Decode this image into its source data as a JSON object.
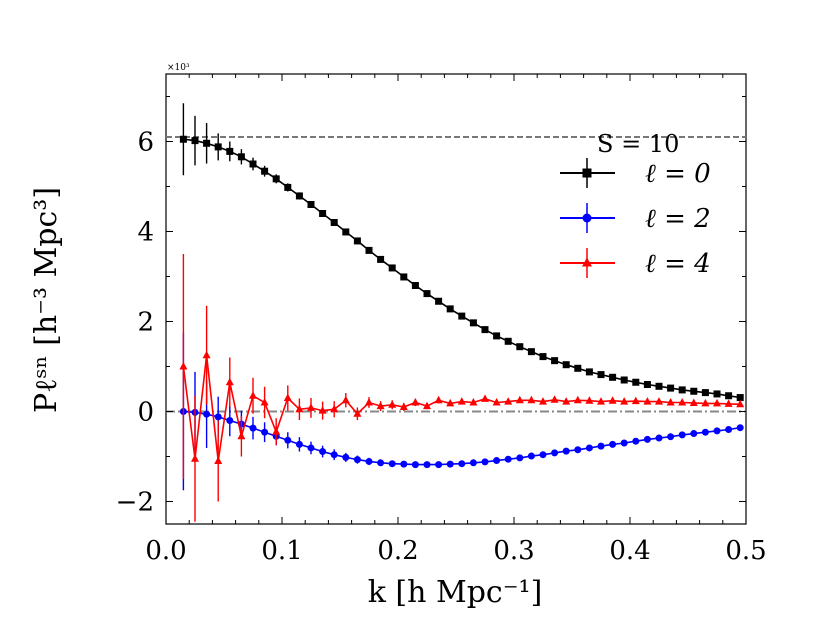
{
  "chart_data": {
    "type": "line",
    "xlabel": "k [h Mpc⁻¹]",
    "ylabel": "Pℓˢⁿ [h⁻³ Mpc³]",
    "xlim": [
      0.0,
      0.5
    ],
    "ylim": [
      -2.5,
      7.5
    ],
    "x_ticks": [
      0.0,
      0.1,
      0.2,
      0.3,
      0.4,
      0.5
    ],
    "x_tick_labels": [
      "0.0",
      "0.1",
      "0.2",
      "0.3",
      "0.4",
      "0.5"
    ],
    "y_ticks": [
      -2,
      0,
      2,
      4,
      6
    ],
    "y_tick_labels": [
      "−2",
      "0",
      "2",
      "4",
      "6"
    ],
    "multiplier_label": "×10³",
    "annotation": "S = 10",
    "legend_position": "right",
    "reference_lines": [
      {
        "name": "shot-noise-level",
        "y": 6.1,
        "style": "dashed",
        "color": "#777777"
      },
      {
        "name": "zero-line",
        "y": 0.0,
        "style": "dashdot",
        "color": "#888888"
      }
    ],
    "series": [
      {
        "name": "ℓ = 0",
        "color": "#000000",
        "marker": "square",
        "x": [
          0.015,
          0.025,
          0.035,
          0.045,
          0.055,
          0.065,
          0.075,
          0.085,
          0.095,
          0.105,
          0.115,
          0.125,
          0.135,
          0.145,
          0.155,
          0.165,
          0.175,
          0.185,
          0.195,
          0.205,
          0.215,
          0.225,
          0.235,
          0.245,
          0.255,
          0.265,
          0.275,
          0.285,
          0.295,
          0.305,
          0.315,
          0.325,
          0.335,
          0.345,
          0.355,
          0.365,
          0.375,
          0.385,
          0.395,
          0.405,
          0.415,
          0.425,
          0.435,
          0.445,
          0.455,
          0.465,
          0.475,
          0.485,
          0.495
        ],
        "values": [
          6.05,
          6.02,
          5.96,
          5.88,
          5.78,
          5.66,
          5.5,
          5.34,
          5.17,
          4.98,
          4.79,
          4.6,
          4.4,
          4.2,
          3.99,
          3.79,
          3.58,
          3.38,
          3.19,
          2.99,
          2.8,
          2.62,
          2.45,
          2.28,
          2.12,
          1.97,
          1.82,
          1.68,
          1.56,
          1.44,
          1.33,
          1.22,
          1.13,
          1.04,
          0.96,
          0.88,
          0.82,
          0.76,
          0.7,
          0.65,
          0.6,
          0.56,
          0.52,
          0.48,
          0.45,
          0.42,
          0.39,
          0.35,
          0.31
        ],
        "errors": [
          0.8,
          0.55,
          0.45,
          0.3,
          0.22,
          0.17,
          0.14,
          0.12,
          0.1,
          0.09,
          0.08,
          0.07,
          0.07,
          0.06,
          0.06,
          0.06,
          0.05,
          0.05,
          0.05,
          0.05,
          0.05,
          0.05,
          0.05,
          0.05,
          0.05,
          0.05,
          0.05,
          0.05,
          0.05,
          0.05,
          0.05,
          0.05,
          0.05,
          0.05,
          0.05,
          0.05,
          0.05,
          0.05,
          0.05,
          0.05,
          0.05,
          0.05,
          0.05,
          0.05,
          0.05,
          0.05,
          0.05,
          0.05,
          0.05
        ]
      },
      {
        "name": "ℓ = 2",
        "color": "#0000ff",
        "marker": "circle",
        "x": [
          0.015,
          0.025,
          0.035,
          0.045,
          0.055,
          0.065,
          0.075,
          0.085,
          0.095,
          0.105,
          0.115,
          0.125,
          0.135,
          0.145,
          0.155,
          0.165,
          0.175,
          0.185,
          0.195,
          0.205,
          0.215,
          0.225,
          0.235,
          0.245,
          0.255,
          0.265,
          0.275,
          0.285,
          0.295,
          0.305,
          0.315,
          0.325,
          0.335,
          0.345,
          0.355,
          0.365,
          0.375,
          0.385,
          0.395,
          0.405,
          0.415,
          0.425,
          0.435,
          0.445,
          0.455,
          0.465,
          0.475,
          0.485,
          0.495
        ],
        "values": [
          0.0,
          -0.02,
          -0.06,
          -0.12,
          -0.2,
          -0.28,
          -0.37,
          -0.46,
          -0.55,
          -0.64,
          -0.73,
          -0.81,
          -0.89,
          -0.96,
          -1.02,
          -1.07,
          -1.11,
          -1.14,
          -1.16,
          -1.17,
          -1.18,
          -1.18,
          -1.18,
          -1.17,
          -1.16,
          -1.14,
          -1.12,
          -1.09,
          -1.06,
          -1.03,
          -0.99,
          -0.96,
          -0.92,
          -0.88,
          -0.85,
          -0.81,
          -0.77,
          -0.73,
          -0.7,
          -0.66,
          -0.62,
          -0.59,
          -0.56,
          -0.52,
          -0.49,
          -0.46,
          -0.43,
          -0.4,
          -0.36
        ],
        "errors": [
          1.75,
          0.9,
          0.75,
          0.45,
          0.35,
          0.3,
          0.25,
          0.22,
          0.2,
          0.18,
          0.16,
          0.14,
          0.13,
          0.12,
          0.1,
          0.09,
          0.08,
          0.07,
          0.06,
          0.06,
          0.05,
          0.05,
          0.05,
          0.05,
          0.05,
          0.05,
          0.05,
          0.05,
          0.05,
          0.05,
          0.05,
          0.05,
          0.05,
          0.05,
          0.05,
          0.05,
          0.05,
          0.05,
          0.05,
          0.05,
          0.05,
          0.05,
          0.05,
          0.05,
          0.05,
          0.05,
          0.05,
          0.05,
          0.05
        ]
      },
      {
        "name": "ℓ = 4",
        "color": "#ff0000",
        "marker": "triangle",
        "x": [
          0.015,
          0.025,
          0.035,
          0.045,
          0.055,
          0.065,
          0.075,
          0.085,
          0.095,
          0.105,
          0.115,
          0.125,
          0.135,
          0.145,
          0.155,
          0.165,
          0.175,
          0.185,
          0.195,
          0.205,
          0.215,
          0.225,
          0.235,
          0.245,
          0.255,
          0.265,
          0.275,
          0.285,
          0.295,
          0.305,
          0.315,
          0.325,
          0.335,
          0.345,
          0.355,
          0.365,
          0.375,
          0.385,
          0.395,
          0.405,
          0.415,
          0.425,
          0.435,
          0.445,
          0.455,
          0.465,
          0.475,
          0.485,
          0.495
        ],
        "values": [
          1.0,
          -1.05,
          1.25,
          -1.1,
          0.65,
          -0.55,
          0.35,
          0.2,
          -0.45,
          0.3,
          0.05,
          0.08,
          0.02,
          0.05,
          0.25,
          -0.05,
          0.2,
          0.12,
          0.15,
          0.1,
          0.2,
          0.12,
          0.25,
          0.18,
          0.22,
          0.2,
          0.28,
          0.2,
          0.22,
          0.25,
          0.25,
          0.22,
          0.26,
          0.22,
          0.25,
          0.24,
          0.22,
          0.24,
          0.22,
          0.23,
          0.22,
          0.22,
          0.2,
          0.2,
          0.19,
          0.18,
          0.18,
          0.17,
          0.16
        ],
        "errors": [
          2.5,
          1.4,
          1.1,
          0.9,
          0.55,
          0.45,
          0.4,
          0.35,
          0.3,
          0.28,
          0.24,
          0.22,
          0.2,
          0.18,
          0.16,
          0.14,
          0.12,
          0.11,
          0.1,
          0.09,
          0.08,
          0.07,
          0.07,
          0.06,
          0.06,
          0.06,
          0.05,
          0.05,
          0.05,
          0.05,
          0.05,
          0.05,
          0.05,
          0.05,
          0.05,
          0.05,
          0.05,
          0.05,
          0.05,
          0.05,
          0.05,
          0.05,
          0.05,
          0.05,
          0.05,
          0.05,
          0.05,
          0.05,
          0.05
        ]
      }
    ]
  }
}
